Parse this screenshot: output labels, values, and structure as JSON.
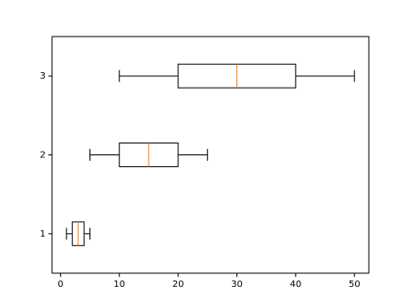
{
  "chart_data": {
    "type": "boxplot",
    "orientation": "horizontal",
    "categories": [
      "1",
      "2",
      "3"
    ],
    "boxes": [
      {
        "whislo": 1,
        "q1": 2,
        "med": 3,
        "q3": 4,
        "whishi": 5
      },
      {
        "whislo": 5,
        "q1": 10,
        "med": 15,
        "q3": 20,
        "whishi": 25
      },
      {
        "whislo": 10,
        "q1": 20,
        "med": 30,
        "q3": 40,
        "whishi": 50
      }
    ],
    "box_color": "#000000",
    "median_color": "#ff7f0e",
    "xlim": [
      -1.45,
      52.45
    ],
    "xticks": [
      0,
      10,
      20,
      30,
      40,
      50
    ],
    "ylim": [
      0.5,
      3.5
    ]
  }
}
